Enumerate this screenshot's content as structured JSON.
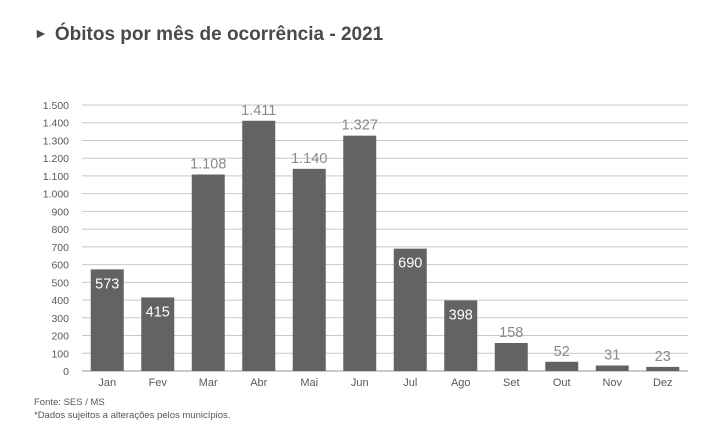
{
  "title": "Óbitos por mês de ocorrência - 2021",
  "title_marker": "►",
  "chart_data": {
    "type": "bar",
    "title": "Óbitos por mês de ocorrência - 2021",
    "categories": [
      "Jan",
      "Fev",
      "Mar",
      "Abr",
      "Mai",
      "Jun",
      "Jul",
      "Ago",
      "Set",
      "Out",
      "Nov",
      "Dez"
    ],
    "values": [
      573,
      415,
      1108,
      1411,
      1140,
      1327,
      690,
      398,
      158,
      52,
      31,
      23
    ],
    "value_labels": [
      "573",
      "415",
      "1.108",
      "1.411",
      "1.140",
      "1.327",
      "690",
      "398",
      "158",
      "52",
      "31",
      "23"
    ],
    "ylim": [
      0,
      1500
    ],
    "yticks": [
      0,
      100,
      200,
      300,
      400,
      500,
      600,
      700,
      800,
      900,
      1000,
      1100,
      1200,
      1300,
      1400,
      1500
    ],
    "ytick_labels": [
      "0",
      "100",
      "200",
      "300",
      "400",
      "500",
      "600",
      "700",
      "800",
      "900",
      "1.000",
      "1.100",
      "1.200",
      "1.300",
      "1.400",
      "1.500"
    ],
    "grid": true,
    "bar_color": "#636363",
    "grid_color": "#c8c8c8"
  },
  "footnotes": {
    "source": "Fonte: SES / MS",
    "note": "*Dados sujeitos a alterações pelos municípios."
  }
}
